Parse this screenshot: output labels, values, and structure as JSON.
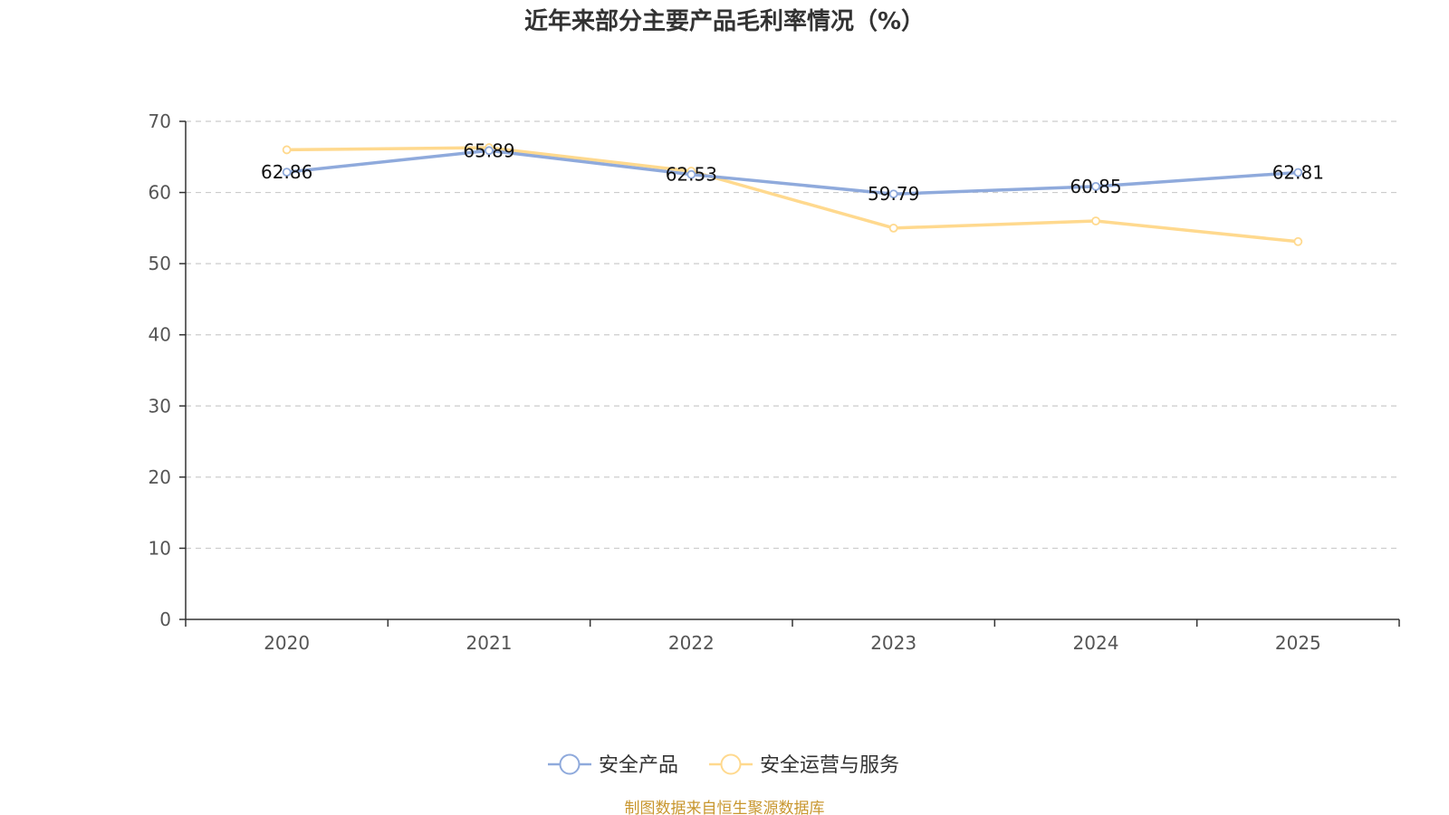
{
  "chart_data": {
    "type": "line",
    "title": "近年来部分主要产品毛利率情况（%）",
    "categories": [
      "2020",
      "2021",
      "2022",
      "2023",
      "2024",
      "2025"
    ],
    "ylim": [
      0,
      70
    ],
    "yticks": [
      0,
      10,
      20,
      30,
      40,
      50,
      60,
      70
    ],
    "grid": true,
    "legend_position": "bottom-center",
    "series": [
      {
        "name": "安全产品",
        "color": "#8FAADC",
        "values": [
          62.86,
          65.89,
          62.53,
          59.79,
          60.85,
          62.81
        ],
        "labels": [
          "62.86",
          "65.89",
          "62.53",
          "59.79",
          "60.85",
          "62.81"
        ]
      },
      {
        "name": "安全运营与服务",
        "color": "#FFD98E",
        "values": [
          66.0,
          66.3,
          63.0,
          55.0,
          56.0,
          53.1
        ]
      }
    ]
  },
  "footer": {
    "source": "制图数据来自恒生聚源数据库",
    "source_color": "#C8962E"
  }
}
